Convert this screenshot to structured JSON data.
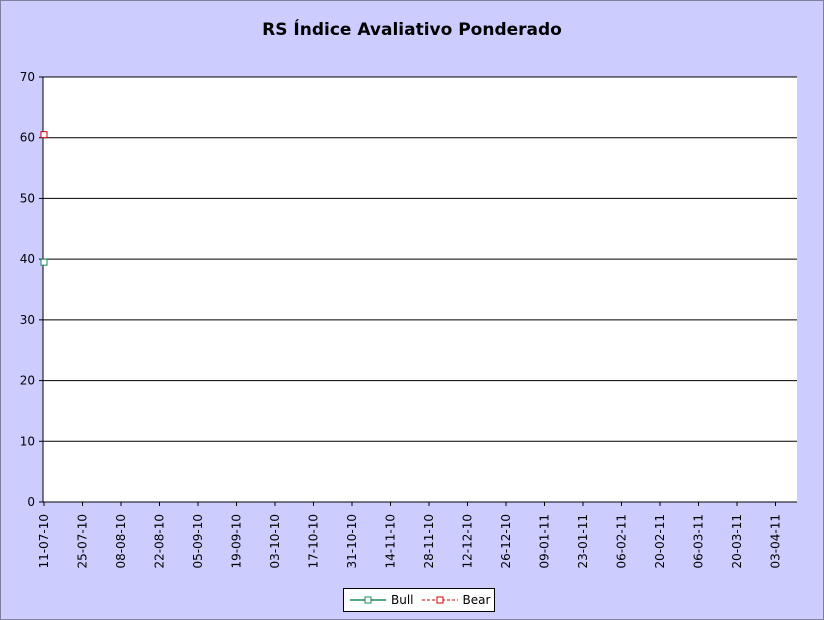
{
  "chart_data": {
    "type": "line",
    "title": "RS Índice Avaliativo Ponderado",
    "xlabel": "",
    "ylabel": "",
    "ylim": [
      0,
      70
    ],
    "yticks": [
      "0",
      "10",
      "20",
      "30",
      "40",
      "50",
      "60",
      "70"
    ],
    "categories": [
      "11-07-10",
      "25-07-10",
      "08-08-10",
      "22-08-10",
      "05-09-10",
      "19-09-10",
      "03-10-10",
      "17-10-10",
      "31-10-10",
      "14-11-10",
      "28-11-10",
      "12-12-10",
      "26-12-10",
      "09-01-11",
      "23-01-11",
      "06-02-11",
      "20-02-11",
      "06-03-11",
      "20-03-11",
      "03-04-11"
    ],
    "series": [
      {
        "name": "Bull",
        "color": "#1a8a5a",
        "dash": "solid",
        "x": [
          "11-07-10"
        ],
        "values": [
          39.5
        ]
      },
      {
        "name": "Bear",
        "color": "#cc0000",
        "dash": "dashed",
        "x": [
          "11-07-10"
        ],
        "values": [
          60.5
        ]
      }
    ],
    "grid": true,
    "legend": "bottom",
    "colors": {
      "background": "#ccccff",
      "plot_area": "#ffffff"
    }
  }
}
